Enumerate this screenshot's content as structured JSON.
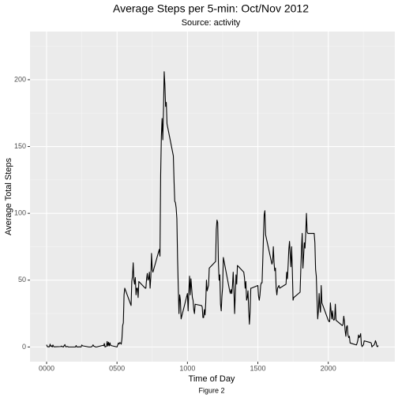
{
  "chart_data": {
    "type": "line",
    "title": "Average Steps per 5-min: Oct/Nov 2012",
    "subtitle": "Source: activity",
    "x_label": "Time of Day",
    "y_label": "Average Total Steps",
    "caption": "Figure 2",
    "xlim": [
      -117.75,
      2472.75
    ],
    "ylim": [
      -11,
      236
    ],
    "xticks": [
      {
        "value": 0,
        "label": "0000"
      },
      {
        "value": 500,
        "label": "0500"
      },
      1000,
      1500,
      2000
    ],
    "yticks": [
      0,
      50,
      100,
      150,
      200
    ],
    "xminorticks": [
      250,
      750,
      1250,
      1750,
      2250
    ],
    "yminorticks": [
      25,
      75,
      125,
      175,
      225
    ],
    "grid": true,
    "series": [
      {
        "color": "#000000",
        "x": [
          0,
          5,
          10,
          15,
          20,
          25,
          30,
          35,
          40,
          45,
          50,
          55,
          100,
          105,
          110,
          115,
          120,
          125,
          130,
          135,
          140,
          145,
          150,
          155,
          200,
          205,
          210,
          215,
          220,
          225,
          230,
          235,
          240,
          245,
          250,
          255,
          300,
          305,
          310,
          315,
          320,
          325,
          330,
          335,
          340,
          345,
          350,
          355,
          400,
          405,
          410,
          415,
          420,
          425,
          430,
          435,
          440,
          445,
          450,
          455,
          500,
          505,
          510,
          515,
          520,
          525,
          530,
          535,
          540,
          545,
          550,
          555,
          600,
          605,
          610,
          615,
          620,
          625,
          630,
          635,
          640,
          645,
          650,
          655,
          700,
          705,
          710,
          715,
          720,
          725,
          730,
          735,
          740,
          745,
          750,
          755,
          800,
          805,
          810,
          815,
          820,
          825,
          830,
          835,
          840,
          845,
          850,
          855,
          900,
          905,
          910,
          915,
          920,
          925,
          930,
          935,
          940,
          945,
          950,
          955,
          1000,
          1005,
          1010,
          1015,
          1020,
          1025,
          1030,
          1035,
          1040,
          1045,
          1050,
          1055,
          1100,
          1105,
          1110,
          1115,
          1120,
          1125,
          1130,
          1135,
          1140,
          1145,
          1150,
          1155,
          1200,
          1205,
          1210,
          1215,
          1220,
          1225,
          1230,
          1235,
          1240,
          1245,
          1250,
          1255,
          1300,
          1305,
          1310,
          1315,
          1320,
          1325,
          1330,
          1335,
          1340,
          1345,
          1350,
          1355,
          1400,
          1405,
          1410,
          1415,
          1420,
          1425,
          1430,
          1435,
          1440,
          1445,
          1450,
          1455,
          1500,
          1505,
          1510,
          1515,
          1520,
          1525,
          1530,
          1535,
          1540,
          1545,
          1550,
          1555,
          1600,
          1605,
          1610,
          1615,
          1620,
          1625,
          1630,
          1635,
          1640,
          1645,
          1650,
          1655,
          1700,
          1705,
          1710,
          1715,
          1720,
          1725,
          1730,
          1735,
          1740,
          1745,
          1750,
          1755,
          1800,
          1805,
          1810,
          1815,
          1820,
          1825,
          1830,
          1835,
          1840,
          1845,
          1850,
          1855,
          1900,
          1905,
          1910,
          1915,
          1920,
          1925,
          1930,
          1935,
          1940,
          1945,
          1950,
          1955,
          2000,
          2005,
          2010,
          2015,
          2020,
          2025,
          2030,
          2035,
          2040,
          2045,
          2050,
          2055,
          2100,
          2105,
          2110,
          2115,
          2120,
          2125,
          2130,
          2135,
          2140,
          2145,
          2150,
          2155,
          2200,
          2205,
          2210,
          2215,
          2220,
          2225,
          2230,
          2235,
          2240,
          2245,
          2250,
          2255,
          2300,
          2305,
          2310,
          2315,
          2320,
          2325,
          2330,
          2335,
          2340,
          2345,
          2350,
          2355
        ],
        "values": [
          1.7,
          0.3,
          0.1,
          0.2,
          0.1,
          2.1,
          0.5,
          0.9,
          0,
          1.5,
          0.3,
          0.1,
          0.3,
          0.7,
          0.2,
          0.3,
          0,
          1.1,
          1.8,
          0.2,
          0.2,
          0.4,
          0.3,
          0,
          0,
          0,
          1.1,
          0,
          0,
          0.1,
          0,
          0.2,
          0,
          0,
          1.5,
          0.9,
          0,
          0,
          0,
          0,
          0.2,
          0.6,
          1.6,
          0.6,
          0.5,
          0.1,
          0,
          0,
          1.2,
          0.9,
          2.6,
          0,
          0.3,
          0.4,
          4.1,
          0.7,
          3.5,
          0.8,
          3.1,
          1.1,
          0,
          1.5,
          3,
          2.2,
          3.3,
          3,
          2.1,
          6.1,
          16,
          18,
          39,
          44,
          31,
          49,
          53,
          63,
          50,
          47,
          52,
          39,
          44,
          44,
          37,
          49,
          44,
          44,
          51,
          55,
          50,
          51,
          56,
          44,
          52,
          70,
          58,
          56,
          73,
          68,
          129,
          158,
          171,
          155,
          177,
          206,
          196,
          180,
          183,
          167,
          143,
          124,
          109,
          108,
          104,
          96,
          66,
          45,
          25,
          39,
          35,
          21,
          40,
          27,
          42,
          53,
          39,
          51,
          44,
          37,
          35,
          28,
          25,
          32,
          31,
          30,
          22,
          22,
          28,
          24,
          33,
          50,
          42,
          44,
          46,
          59,
          64,
          88,
          95,
          93,
          63,
          50,
          54,
          32,
          27,
          38,
          45,
          67,
          42,
          40,
          43,
          40,
          46,
          56,
          43,
          25,
          40,
          54,
          47,
          61,
          56,
          52,
          44,
          49,
          35,
          37,
          42,
          28,
          17,
          26,
          44,
          44,
          46,
          38,
          35,
          39,
          46,
          48,
          48,
          65,
          83,
          99,
          102,
          84,
          62,
          64,
          75,
          63,
          57,
          59,
          44,
          39,
          44,
          45,
          46,
          44,
          47,
          56,
          51,
          61,
          73,
          79,
          69,
          60,
          75,
          57,
          35,
          37,
          41,
          58,
          74,
          85,
          59,
          68,
          78,
          74,
          85,
          100,
          86,
          85,
          85,
          78,
          58,
          53,
          36,
          21,
          27,
          40,
          30,
          26,
          46,
          33,
          20,
          19,
          19,
          33,
          27,
          21,
          27,
          21,
          20,
          21,
          32,
          20,
          16,
          17,
          23,
          19,
          12,
          8,
          15,
          16,
          9,
          7,
          8,
          3,
          1.5,
          3,
          5,
          9,
          7,
          8,
          10,
          2,
          0.3,
          1,
          1.6,
          4.6,
          3.3,
          3,
          0,
          0.8,
          1,
          1.6,
          2.6,
          4.7,
          3.3,
          0.6,
          0.2,
          1.1
        ]
      }
    ]
  }
}
